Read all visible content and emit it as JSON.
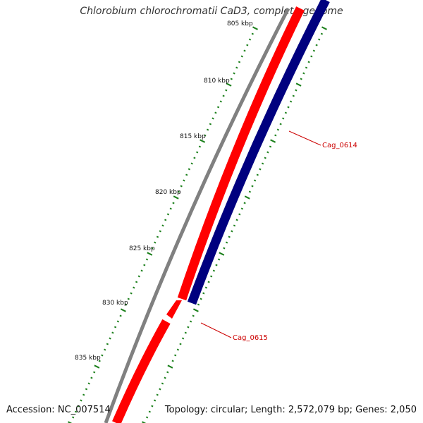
{
  "title": "Chlorobium chlorochromatii CaD3, complete genome",
  "footer": {
    "accession": "Accession: NC_007514",
    "summary": "Topology: circular; Length: 2,572,079 bp; Genes: 2,050"
  },
  "colors": {
    "forward_feature": "#ff0000",
    "reverse_feature": "#00007f",
    "backbone": "#808080",
    "tick": "#1a7f1a",
    "label": "#cc0000",
    "text": "#111111"
  },
  "ruler": {
    "unit": "kbp",
    "labels": [
      "805 kbp",
      "810 kbp",
      "815 kbp",
      "820 kbp",
      "825 kbp",
      "830 kbp",
      "835 kbp"
    ]
  },
  "genes": [
    {
      "name": "Cag_0614",
      "strand": "reverse"
    },
    {
      "name": "Cag_0615",
      "strand": "forward"
    }
  ]
}
